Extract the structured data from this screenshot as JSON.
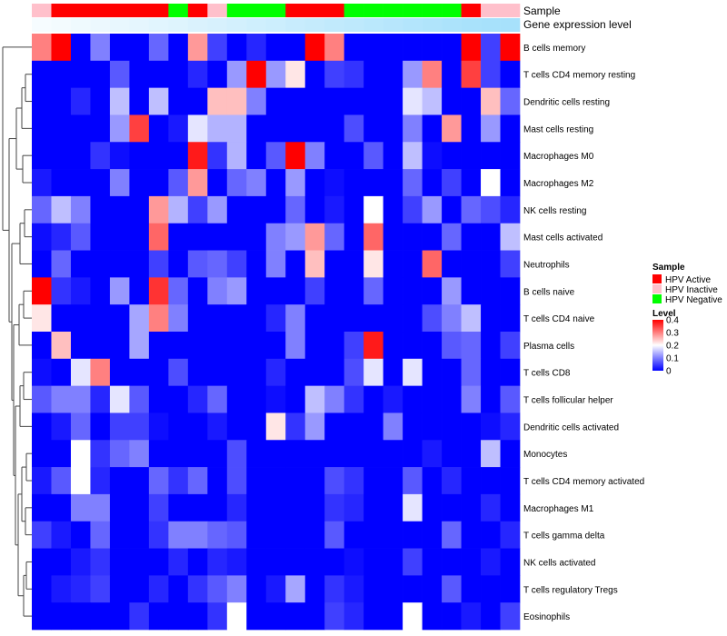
{
  "chart_data": {
    "type": "heatmap",
    "title": "",
    "annotation_labels": {
      "sample": "Sample",
      "gene_expression": "Gene expression level"
    },
    "legend_sample": {
      "title": "Sample",
      "entries": [
        {
          "label": "HPV Active",
          "color": "#ff0000"
        },
        {
          "label": "HPV Inactive",
          "color": "#ffc0cb"
        },
        {
          "label": "HPV Negative",
          "color": "#00ff00"
        }
      ]
    },
    "legend_level": {
      "title": "Level",
      "ticks": [
        "0",
        "0.1",
        "0.2",
        "0.3",
        "0.4"
      ],
      "range": [
        0,
        0.4
      ],
      "colors": [
        "#0000ff",
        "#ffffff",
        "#ff0000"
      ]
    },
    "sample_groups": [
      "I",
      "A",
      "A",
      "A",
      "A",
      "A",
      "A",
      "N",
      "A",
      "I",
      "N",
      "N",
      "N",
      "A",
      "A",
      "A",
      "N",
      "N",
      "N",
      "N",
      "N",
      "N",
      "A",
      "I",
      "I"
    ],
    "gene_expression": [
      0.05,
      0.07,
      0.09,
      0.11,
      0.13,
      0.15,
      0.17,
      0.19,
      0.21,
      0.23,
      0.25,
      0.27,
      0.29,
      0.31,
      0.33,
      0.35,
      0.37,
      0.39,
      0.41,
      0.43,
      0.45,
      0.47,
      0.49,
      0.5,
      0.5
    ],
    "gene_expression_colors": [
      "#ffffff",
      "#4fc3f7"
    ],
    "rows": [
      "B cells memory",
      "T cells CD4 memory resting",
      "Dendritic cells resting",
      "Mast cells resting",
      "Macrophages M0",
      "Macrophages M2",
      "NK cells resting",
      "Mast cells activated",
      "Neutrophils",
      "B cells naive",
      "T cells CD4 naive",
      "Plasma cells",
      "T cells CD8",
      "T cells follicular helper",
      "Dendritic cells activated",
      "Monocytes",
      "T cells CD4 memory activated",
      "Macrophages M1",
      "T cells gamma delta",
      "NK cells activated",
      "T cells regulatory  Tregs",
      "Eosinophils"
    ],
    "values": [
      [
        0.3,
        0.4,
        0.0,
        0.1,
        0.0,
        0.0,
        0.08,
        0.0,
        0.28,
        0.05,
        0.0,
        0.03,
        0.0,
        0.0,
        0.4,
        0.3,
        0.0,
        0.0,
        0.0,
        0.0,
        0.0,
        0.0,
        0.4,
        0.05,
        0.4
      ],
      [
        0.0,
        0.0,
        0.0,
        0.0,
        0.07,
        0.0,
        0.0,
        0.0,
        0.03,
        0.0,
        0.12,
        0.4,
        0.12,
        0.22,
        0.0,
        0.05,
        0.04,
        0.0,
        0.0,
        0.12,
        0.3,
        0.0,
        0.35,
        0.05,
        0.0
      ],
      [
        0.0,
        0.0,
        0.03,
        0.0,
        0.15,
        0.0,
        0.15,
        0.0,
        0.0,
        0.25,
        0.25,
        0.1,
        0.0,
        0.0,
        0.0,
        0.0,
        0.0,
        0.0,
        0.0,
        0.18,
        0.15,
        0.0,
        0.0,
        0.25,
        0.08
      ],
      [
        0.0,
        0.0,
        0.0,
        0.0,
        0.12,
        0.35,
        0.0,
        0.02,
        0.18,
        0.14,
        0.14,
        0.0,
        0.0,
        0.0,
        0.0,
        0.0,
        0.06,
        0.0,
        0.0,
        0.1,
        0.0,
        0.28,
        0.0,
        0.12,
        0.0
      ],
      [
        0.0,
        0.0,
        0.0,
        0.04,
        0.01,
        0.0,
        0.0,
        0.0,
        0.38,
        0.04,
        0.14,
        0.0,
        0.07,
        0.4,
        0.1,
        0.0,
        0.0,
        0.07,
        0.0,
        0.15,
        0.01,
        0.0,
        0.0,
        0.0,
        0.0
      ],
      [
        0.02,
        0.0,
        0.0,
        0.0,
        0.1,
        0.0,
        0.0,
        0.07,
        0.28,
        0.0,
        0.08,
        0.1,
        0.0,
        0.12,
        0.0,
        0.01,
        0.0,
        0.0,
        0.0,
        0.08,
        0.0,
        0.05,
        0.0,
        0.2,
        0.0
      ],
      [
        0.08,
        0.15,
        0.1,
        0.0,
        0.0,
        0.0,
        0.28,
        0.14,
        0.05,
        0.12,
        0.0,
        0.0,
        0.0,
        0.08,
        0.0,
        0.02,
        0.0,
        0.2,
        0.0,
        0.05,
        0.12,
        0.0,
        0.08,
        0.06,
        0.03
      ],
      [
        0.01,
        0.03,
        0.07,
        0.0,
        0.0,
        0.0,
        0.32,
        0.0,
        0.0,
        0.0,
        0.0,
        0.0,
        0.1,
        0.12,
        0.28,
        0.08,
        0.0,
        0.32,
        0.0,
        0.0,
        0.0,
        0.08,
        0.0,
        0.0,
        0.15
      ],
      [
        0.0,
        0.08,
        0.0,
        0.0,
        0.0,
        0.0,
        0.05,
        0.0,
        0.07,
        0.08,
        0.05,
        0.0,
        0.1,
        0.0,
        0.25,
        0.0,
        0.0,
        0.22,
        0.0,
        0.0,
        0.32,
        0.0,
        0.0,
        0.0,
        0.05
      ],
      [
        0.4,
        0.04,
        0.02,
        0.0,
        0.12,
        0.0,
        0.36,
        0.08,
        0.0,
        0.1,
        0.12,
        0.0,
        0.0,
        0.0,
        0.05,
        0.0,
        0.0,
        0.08,
        0.0,
        0.0,
        0.0,
        0.12,
        0.0,
        0.0,
        0.0
      ],
      [
        0.22,
        0.0,
        0.0,
        0.0,
        0.0,
        0.13,
        0.3,
        0.1,
        0.0,
        0.0,
        0.0,
        0.0,
        0.03,
        0.1,
        0.0,
        0.0,
        0.0,
        0.0,
        0.0,
        0.0,
        0.06,
        0.1,
        0.15,
        0.0,
        0.0
      ],
      [
        0.0,
        0.25,
        0.0,
        0.0,
        0.0,
        0.13,
        0.0,
        0.0,
        0.0,
        0.0,
        0.0,
        0.0,
        0.0,
        0.1,
        0.0,
        0.0,
        0.05,
        0.38,
        0.0,
        0.0,
        0.0,
        0.07,
        0.08,
        0.0,
        0.05
      ],
      [
        0.01,
        0.0,
        0.18,
        0.3,
        0.0,
        0.0,
        0.0,
        0.06,
        0.0,
        0.0,
        0.0,
        0.0,
        0.03,
        0.0,
        0.0,
        0.0,
        0.06,
        0.18,
        0.0,
        0.18,
        0.0,
        0.0,
        0.08,
        0.0,
        0.0
      ],
      [
        0.07,
        0.1,
        0.1,
        0.03,
        0.18,
        0.07,
        0.0,
        0.0,
        0.03,
        0.08,
        0.0,
        0.0,
        0.01,
        0.0,
        0.15,
        0.1,
        0.04,
        0.0,
        0.02,
        0.0,
        0.0,
        0.0,
        0.1,
        0.0,
        0.07
      ],
      [
        0.0,
        0.02,
        0.08,
        0.0,
        0.05,
        0.05,
        0.01,
        0.0,
        0.0,
        0.02,
        0.0,
        0.0,
        0.22,
        0.04,
        0.12,
        0.0,
        0.0,
        0.0,
        0.1,
        0.0,
        0.0,
        0.0,
        0.0,
        0.01,
        0.03
      ],
      [
        0.0,
        0.0,
        0.2,
        0.04,
        0.08,
        0.1,
        0.0,
        0.0,
        0.0,
        0.0,
        0.06,
        0.0,
        0.0,
        0.0,
        0.0,
        0.0,
        0.0,
        0.0,
        0.0,
        0.0,
        0.02,
        0.0,
        0.0,
        0.15,
        0.0
      ],
      [
        0.02,
        0.07,
        0.2,
        0.03,
        0.0,
        0.0,
        0.08,
        0.04,
        0.08,
        0.0,
        0.06,
        0.0,
        0.0,
        0.0,
        0.0,
        0.06,
        0.04,
        0.0,
        0.0,
        0.07,
        0.0,
        0.03,
        0.0,
        0.0,
        0.0
      ],
      [
        0.0,
        0.0,
        0.1,
        0.1,
        0.0,
        0.0,
        0.05,
        0.0,
        0.0,
        0.0,
        0.03,
        0.0,
        0.0,
        0.0,
        0.0,
        0.04,
        0.03,
        0.0,
        0.0,
        0.18,
        0.0,
        0.0,
        0.0,
        0.03,
        0.0
      ],
      [
        0.05,
        0.02,
        0.0,
        0.08,
        0.0,
        0.0,
        0.04,
        0.1,
        0.1,
        0.08,
        0.07,
        0.0,
        0.0,
        0.0,
        0.0,
        0.07,
        0.0,
        0.0,
        0.0,
        0.0,
        0.0,
        0.08,
        0.0,
        0.0,
        0.03
      ],
      [
        0.0,
        0.0,
        0.02,
        0.04,
        0.0,
        0.0,
        0.0,
        0.03,
        0.0,
        0.03,
        0.02,
        0.0,
        0.0,
        0.0,
        0.0,
        0.0,
        0.01,
        0.0,
        0.0,
        0.05,
        0.0,
        0.0,
        0.0,
        0.02,
        0.0
      ],
      [
        0.0,
        0.02,
        0.03,
        0.05,
        0.0,
        0.0,
        0.03,
        0.0,
        0.04,
        0.07,
        0.1,
        0.0,
        0.02,
        0.13,
        0.0,
        0.04,
        0.02,
        0.0,
        0.0,
        0.0,
        0.0,
        0.07,
        0.0,
        0.0,
        0.0
      ],
      [
        0.0,
        0.0,
        0.0,
        0.0,
        0.0,
        0.04,
        0.0,
        0.0,
        0.0,
        0.04,
        0.2,
        0.0,
        0.0,
        0.0,
        0.0,
        0.05,
        0.03,
        0.0,
        0.0,
        0.2,
        0.0,
        0.0,
        0.02,
        0.0,
        0.05
      ]
    ]
  }
}
